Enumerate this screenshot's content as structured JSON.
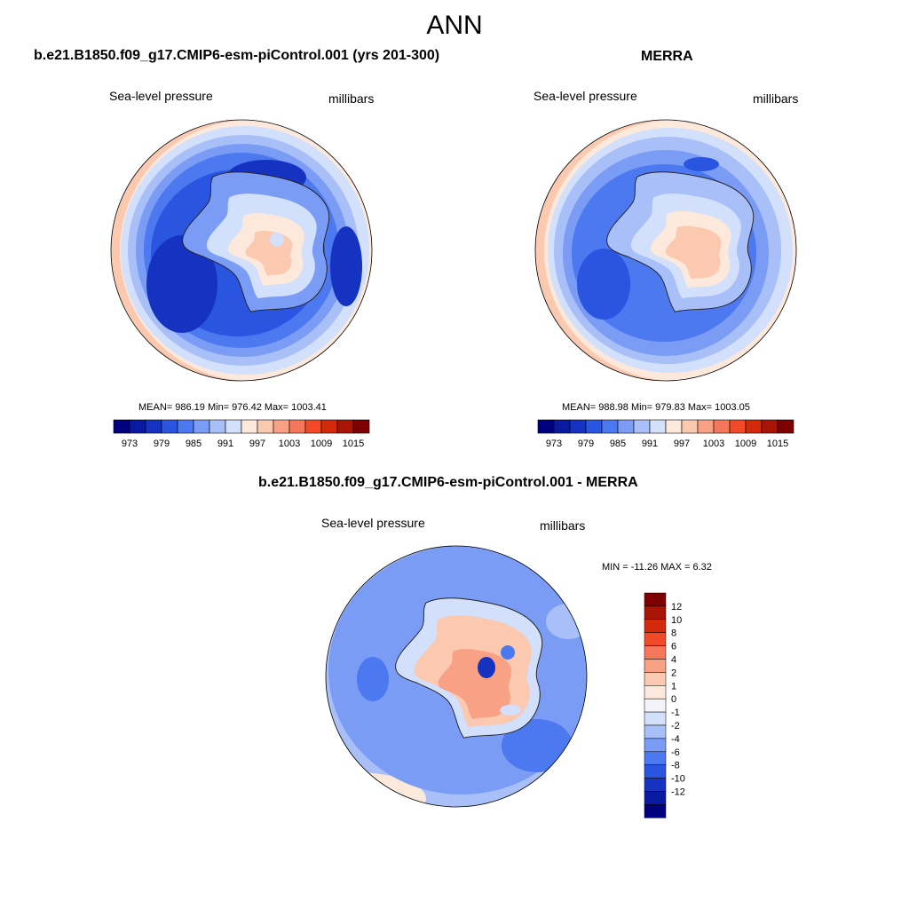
{
  "figure": {
    "title": "ANN"
  },
  "panels": [
    {
      "title": "b.e21.B1850.f09_g17.CMIP6-esm-piControl.001 (yrs 201-300)",
      "left_label": "Sea-level pressure",
      "right_label": "millibars",
      "stats": "MEAN= 986.19  Min= 976.42  Max= 1003.41"
    },
    {
      "title": "MERRA",
      "left_label": "Sea-level pressure",
      "right_label": "millibars",
      "stats": "MEAN= 988.98  Min= 979.83  Max= 1003.05"
    },
    {
      "title": "b.e21.B1850.f09_g17.CMIP6-esm-piControl.001 - MERRA",
      "left_label": "Sea-level pressure",
      "right_label": "millibars",
      "stats": "MIN = -11.26 MAX =   6.32"
    }
  ],
  "colorbar_top": {
    "colors": [
      "#00007f",
      "#0a1aa0",
      "#1533c0",
      "#2a55e0",
      "#4c78f0",
      "#7a9cf5",
      "#a8c0f7",
      "#d2e0fb",
      "#fde9dc",
      "#fbc8b0",
      "#f9a184",
      "#f6785a",
      "#f04a28",
      "#d42a0c",
      "#a81505",
      "#7f0000"
    ],
    "tick_labels": [
      "973",
      "979",
      "985",
      "991",
      "997",
      "1003",
      "1009",
      "1015"
    ]
  },
  "colorbar_diff": {
    "colors": [
      "#00007f",
      "#0a1aa0",
      "#1533c0",
      "#2a55e0",
      "#4c78f0",
      "#7a9cf5",
      "#a8c0f7",
      "#d2e0fb",
      "#f4f4f8",
      "#fde9dc",
      "#fbc8b0",
      "#f9a184",
      "#f6785a",
      "#f04a28",
      "#d42a0c",
      "#a81505",
      "#7f0000"
    ],
    "tick_labels": [
      "12",
      "10",
      "8",
      "6",
      "4",
      "2",
      "1",
      "0",
      "-1",
      "-2",
      "-4",
      "-6",
      "-8",
      "-10",
      "-12"
    ]
  }
}
